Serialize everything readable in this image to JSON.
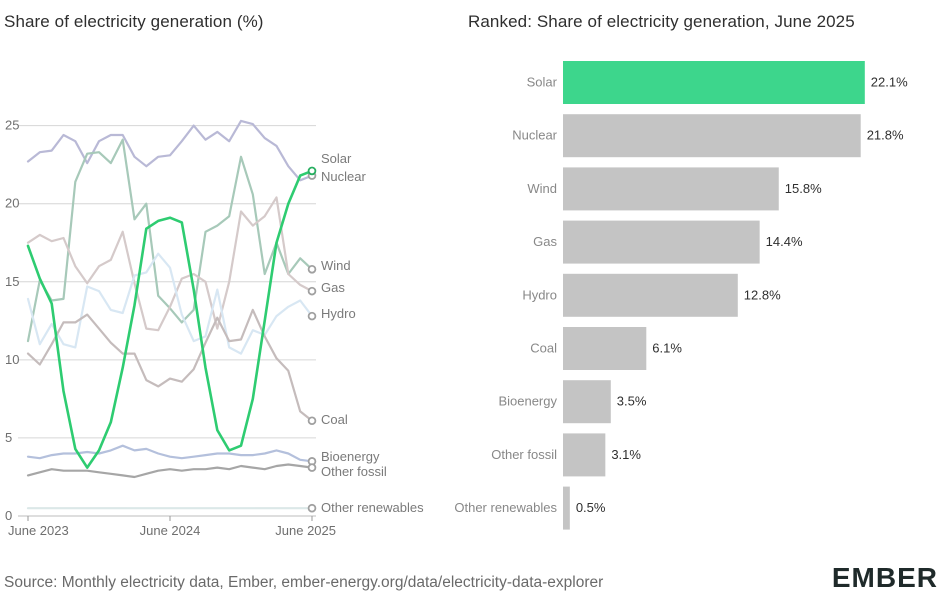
{
  "left_title": "Share of electricity generation (%)",
  "right_title": "Ranked: Share of electricity generation, June 2025",
  "source": "Source: Monthly electricity data, Ember, ember-energy.org/data/electricity-data-explorer",
  "logo": "EMBER",
  "chart_data": [
    {
      "type": "line",
      "title": "Share of electricity generation (%)",
      "xlabel": "",
      "ylabel": "",
      "ylim": [
        0,
        26
      ],
      "yticks": [
        0,
        5,
        10,
        15,
        20,
        25
      ],
      "grid": true,
      "x": [
        "2023-06",
        "2023-07",
        "2023-08",
        "2023-09",
        "2023-10",
        "2023-11",
        "2023-12",
        "2024-01",
        "2024-02",
        "2024-03",
        "2024-04",
        "2024-05",
        "2024-06",
        "2024-07",
        "2024-08",
        "2024-09",
        "2024-10",
        "2024-11",
        "2024-12",
        "2025-01",
        "2025-02",
        "2025-03",
        "2025-04",
        "2025-05",
        "2025-06"
      ],
      "xtick_labels": [
        "June 2023",
        "June 2024",
        "June 2025"
      ],
      "xtick_indices": [
        0,
        12,
        24
      ],
      "series": [
        {
          "name": "Solar",
          "color": "#2ecc71",
          "highlight": true,
          "values": [
            17.3,
            15.2,
            13.6,
            8.0,
            4.3,
            3.1,
            4.2,
            6.0,
            9.5,
            13.5,
            18.4,
            18.9,
            19.1,
            18.8,
            14.5,
            9.5,
            5.5,
            4.2,
            4.5,
            7.5,
            12.5,
            17.5,
            20.0,
            21.8,
            22.1
          ]
        },
        {
          "name": "Nuclear",
          "color": "#b9b9d6",
          "values": [
            22.7,
            23.3,
            23.4,
            24.4,
            24.0,
            22.6,
            24.0,
            24.4,
            24.4,
            23.0,
            22.4,
            23.0,
            23.1,
            24.0,
            25.0,
            24.1,
            24.6,
            24.0,
            25.3,
            25.1,
            24.2,
            23.7,
            22.4,
            21.5,
            21.8
          ]
        },
        {
          "name": "Wind",
          "color": "#a7c9b9",
          "values": [
            11.2,
            15.1,
            13.8,
            13.9,
            21.4,
            23.2,
            23.3,
            22.6,
            24.1,
            19.0,
            20.0,
            14.1,
            13.3,
            12.4,
            13.2,
            18.2,
            18.6,
            19.2,
            23.0,
            20.6,
            15.5,
            17.5,
            15.5,
            16.5,
            15.8
          ]
        },
        {
          "name": "Gas",
          "color": "#d5caca",
          "values": [
            17.5,
            18.0,
            17.6,
            17.8,
            16.0,
            14.9,
            16.0,
            16.4,
            18.2,
            14.9,
            12.0,
            11.9,
            13.4,
            15.2,
            15.5,
            15.0,
            12.0,
            15.0,
            19.5,
            18.6,
            19.2,
            20.4,
            15.5,
            14.8,
            14.4
          ]
        },
        {
          "name": "Hydro",
          "color": "#d8e7f3",
          "values": [
            13.9,
            11.0,
            12.3,
            11.0,
            10.8,
            14.7,
            14.4,
            13.2,
            13.0,
            15.4,
            15.6,
            16.8,
            15.9,
            12.9,
            11.2,
            11.5,
            14.5,
            10.8,
            10.4,
            11.9,
            11.6,
            12.8,
            13.4,
            13.8,
            12.8
          ]
        },
        {
          "name": "Coal",
          "color": "#c5bcbc",
          "values": [
            10.4,
            9.7,
            11.0,
            12.4,
            12.4,
            12.9,
            12.0,
            11.1,
            10.4,
            10.4,
            8.7,
            8.3,
            8.8,
            8.6,
            9.4,
            11.1,
            12.7,
            11.2,
            11.3,
            13.2,
            11.5,
            10.1,
            9.3,
            6.7,
            6.1
          ]
        },
        {
          "name": "Bioenergy",
          "color": "#b4c0dc",
          "values": [
            3.8,
            3.7,
            3.9,
            4.0,
            4.0,
            4.1,
            4.0,
            4.2,
            4.5,
            4.2,
            4.3,
            4.0,
            3.8,
            3.7,
            3.8,
            3.9,
            4.0,
            4.0,
            3.9,
            3.9,
            4.0,
            4.2,
            4.0,
            3.6,
            3.5
          ]
        },
        {
          "name": "Other fossil",
          "color": "#a6a6a6",
          "values": [
            2.6,
            2.8,
            3.0,
            2.9,
            2.9,
            2.9,
            2.8,
            2.7,
            2.6,
            2.5,
            2.7,
            2.9,
            3.0,
            2.9,
            3.0,
            3.0,
            3.1,
            3.0,
            3.2,
            3.1,
            3.0,
            3.2,
            3.3,
            3.2,
            3.1
          ]
        },
        {
          "name": "Other renewables",
          "color": "#dbe8e8",
          "values": [
            0.5,
            0.5,
            0.5,
            0.5,
            0.5,
            0.5,
            0.5,
            0.5,
            0.5,
            0.5,
            0.5,
            0.5,
            0.5,
            0.5,
            0.5,
            0.5,
            0.5,
            0.5,
            0.5,
            0.5,
            0.5,
            0.5,
            0.5,
            0.5,
            0.5
          ]
        }
      ]
    },
    {
      "type": "bar",
      "orientation": "horizontal",
      "title": "Ranked: Share of electricity generation, June 2025",
      "xlim": [
        0,
        24
      ],
      "categories": [
        "Solar",
        "Nuclear",
        "Wind",
        "Gas",
        "Hydro",
        "Coal",
        "Bioenergy",
        "Other fossil",
        "Other renewables"
      ],
      "values": [
        22.1,
        21.8,
        15.8,
        14.4,
        12.8,
        6.1,
        3.5,
        3.1,
        0.5
      ],
      "value_labels": [
        "22.1%",
        "21.8%",
        "15.8%",
        "14.4%",
        "12.8%",
        "6.1%",
        "3.5%",
        "3.1%",
        "0.5%"
      ],
      "colors": [
        "#3dd68c",
        "#c4c4c4",
        "#c4c4c4",
        "#c4c4c4",
        "#c4c4c4",
        "#c4c4c4",
        "#c4c4c4",
        "#c4c4c4",
        "#c4c4c4"
      ]
    }
  ]
}
